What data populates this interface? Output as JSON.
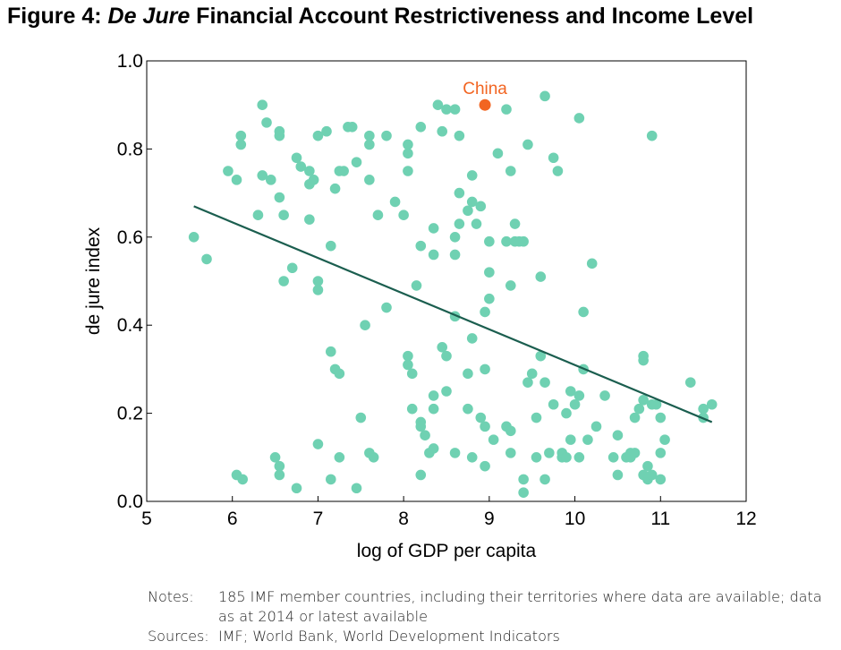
{
  "title": {
    "prefix": "Figure 4: ",
    "emphasis": "De Jure",
    "rest": " Financial Account Restrictiveness and Income Level"
  },
  "notes": {
    "notes_label": "Notes:",
    "notes_text": "185 IMF member countries, including their territories where data are available; data as at 2014 or latest available",
    "sources_label": "Sources:",
    "sources_text": "IMF; World Bank, World Development Indicators"
  },
  "chart_data": {
    "type": "scatter",
    "xlabel": "log of GDP per capita",
    "ylabel": "de jure index",
    "xlim": [
      5,
      12
    ],
    "ylim": [
      0,
      1
    ],
    "xticks": [
      "5",
      "6",
      "7",
      "8",
      "9",
      "10",
      "11",
      "12"
    ],
    "yticks": [
      "0.0",
      "0.2",
      "0.4",
      "0.6",
      "0.8",
      "1.0"
    ],
    "grid": false,
    "colors": {
      "points": "#6fd1b2",
      "trend": "#1b5e4f",
      "highlight": "#f26522"
    },
    "highlight": {
      "label": "China",
      "x": 8.95,
      "y": 0.9
    },
    "trendline": [
      [
        5.55,
        0.67
      ],
      [
        11.6,
        0.18
      ]
    ],
    "points": [
      [
        5.55,
        0.6
      ],
      [
        5.7,
        0.55
      ],
      [
        5.95,
        0.75
      ],
      [
        6.05,
        0.73
      ],
      [
        6.1,
        0.81
      ],
      [
        6.1,
        0.83
      ],
      [
        6.05,
        0.06
      ],
      [
        6.12,
        0.05
      ],
      [
        6.3,
        0.65
      ],
      [
        6.35,
        0.9
      ],
      [
        6.4,
        0.86
      ],
      [
        6.35,
        0.74
      ],
      [
        6.45,
        0.73
      ],
      [
        6.55,
        0.83
      ],
      [
        6.55,
        0.84
      ],
      [
        6.55,
        0.69
      ],
      [
        6.6,
        0.65
      ],
      [
        6.6,
        0.5
      ],
      [
        6.7,
        0.53
      ],
      [
        6.75,
        0.78
      ],
      [
        6.5,
        0.1
      ],
      [
        6.55,
        0.08
      ],
      [
        6.55,
        0.06
      ],
      [
        6.75,
        0.03
      ],
      [
        6.8,
        0.76
      ],
      [
        6.9,
        0.75
      ],
      [
        6.9,
        0.72
      ],
      [
        6.95,
        0.73
      ],
      [
        6.9,
        0.64
      ],
      [
        7.0,
        0.83
      ],
      [
        7.1,
        0.84
      ],
      [
        7.0,
        0.5
      ],
      [
        7.0,
        0.48
      ],
      [
        7.15,
        0.58
      ],
      [
        7.2,
        0.71
      ],
      [
        7.25,
        0.75
      ],
      [
        7.3,
        0.75
      ],
      [
        7.35,
        0.85
      ],
      [
        7.4,
        0.85
      ],
      [
        7.45,
        0.77
      ],
      [
        7.15,
        0.34
      ],
      [
        7.2,
        0.3
      ],
      [
        7.25,
        0.29
      ],
      [
        7.0,
        0.13
      ],
      [
        7.15,
        0.05
      ],
      [
        7.25,
        0.1
      ],
      [
        7.45,
        0.03
      ],
      [
        7.5,
        0.19
      ],
      [
        7.55,
        0.4
      ],
      [
        7.6,
        0.11
      ],
      [
        7.65,
        0.1
      ],
      [
        7.6,
        0.73
      ],
      [
        7.6,
        0.81
      ],
      [
        7.6,
        0.83
      ],
      [
        7.7,
        0.65
      ],
      [
        7.8,
        0.83
      ],
      [
        7.8,
        0.44
      ],
      [
        7.9,
        0.68
      ],
      [
        8.0,
        0.65
      ],
      [
        8.05,
        0.81
      ],
      [
        8.05,
        0.79
      ],
      [
        8.05,
        0.75
      ],
      [
        8.05,
        0.33
      ],
      [
        8.05,
        0.31
      ],
      [
        8.1,
        0.29
      ],
      [
        8.1,
        0.21
      ],
      [
        8.15,
        0.49
      ],
      [
        8.2,
        0.58
      ],
      [
        8.2,
        0.85
      ],
      [
        8.2,
        0.18
      ],
      [
        8.2,
        0.17
      ],
      [
        8.2,
        0.06
      ],
      [
        8.25,
        0.15
      ],
      [
        8.3,
        0.11
      ],
      [
        8.35,
        0.12
      ],
      [
        8.35,
        0.24
      ],
      [
        8.35,
        0.21
      ],
      [
        8.35,
        0.56
      ],
      [
        8.35,
        0.62
      ],
      [
        8.4,
        0.9
      ],
      [
        8.45,
        0.84
      ],
      [
        8.45,
        0.35
      ],
      [
        8.5,
        0.33
      ],
      [
        8.5,
        0.25
      ],
      [
        8.5,
        0.89
      ],
      [
        8.6,
        0.89
      ],
      [
        8.6,
        0.6
      ],
      [
        8.6,
        0.56
      ],
      [
        8.6,
        0.42
      ],
      [
        8.65,
        0.83
      ],
      [
        8.65,
        0.7
      ],
      [
        8.65,
        0.63
      ],
      [
        8.6,
        0.11
      ],
      [
        8.75,
        0.66
      ],
      [
        8.75,
        0.29
      ],
      [
        8.75,
        0.21
      ],
      [
        8.8,
        0.68
      ],
      [
        8.8,
        0.74
      ],
      [
        8.8,
        0.37
      ],
      [
        8.8,
        0.1
      ],
      [
        8.85,
        0.63
      ],
      [
        8.9,
        0.19
      ],
      [
        8.9,
        0.67
      ],
      [
        8.95,
        0.17
      ],
      [
        8.95,
        0.08
      ],
      [
        8.95,
        0.3
      ],
      [
        8.95,
        0.43
      ],
      [
        9.0,
        0.52
      ],
      [
        9.0,
        0.46
      ],
      [
        9.0,
        0.59
      ],
      [
        9.05,
        0.14
      ],
      [
        9.1,
        0.79
      ],
      [
        9.2,
        0.89
      ],
      [
        9.2,
        0.59
      ],
      [
        9.2,
        0.17
      ],
      [
        9.25,
        0.16
      ],
      [
        9.25,
        0.11
      ],
      [
        9.25,
        0.75
      ],
      [
        9.25,
        0.49
      ],
      [
        9.3,
        0.63
      ],
      [
        9.3,
        0.59
      ],
      [
        9.35,
        0.59
      ],
      [
        9.4,
        0.59
      ],
      [
        9.4,
        0.05
      ],
      [
        9.4,
        0.02
      ],
      [
        9.45,
        0.27
      ],
      [
        9.45,
        0.81
      ],
      [
        9.5,
        0.29
      ],
      [
        9.55,
        0.19
      ],
      [
        9.55,
        0.1
      ],
      [
        9.6,
        0.51
      ],
      [
        9.6,
        0.33
      ],
      [
        9.65,
        0.27
      ],
      [
        9.65,
        0.05
      ],
      [
        9.65,
        0.92
      ],
      [
        9.7,
        0.11
      ],
      [
        9.75,
        0.22
      ],
      [
        9.75,
        0.78
      ],
      [
        9.8,
        0.75
      ],
      [
        9.85,
        0.1
      ],
      [
        9.85,
        0.11
      ],
      [
        9.9,
        0.1
      ],
      [
        9.95,
        0.25
      ],
      [
        9.9,
        0.2
      ],
      [
        9.95,
        0.14
      ],
      [
        10.0,
        0.22
      ],
      [
        10.05,
        0.24
      ],
      [
        10.05,
        0.87
      ],
      [
        10.05,
        0.1
      ],
      [
        10.1,
        0.3
      ],
      [
        10.1,
        0.43
      ],
      [
        10.15,
        0.14
      ],
      [
        10.2,
        0.54
      ],
      [
        10.25,
        0.17
      ],
      [
        10.35,
        0.24
      ],
      [
        10.45,
        0.1
      ],
      [
        10.5,
        0.06
      ],
      [
        10.5,
        0.15
      ],
      [
        10.6,
        0.1
      ],
      [
        10.65,
        0.11
      ],
      [
        10.65,
        0.1
      ],
      [
        10.7,
        0.11
      ],
      [
        10.7,
        0.19
      ],
      [
        10.75,
        0.21
      ],
      [
        10.8,
        0.06
      ],
      [
        10.8,
        0.32
      ],
      [
        10.8,
        0.33
      ],
      [
        10.8,
        0.23
      ],
      [
        10.85,
        0.08
      ],
      [
        10.85,
        0.05
      ],
      [
        10.9,
        0.83
      ],
      [
        10.9,
        0.06
      ],
      [
        10.9,
        0.22
      ],
      [
        10.95,
        0.22
      ],
      [
        11.0,
        0.19
      ],
      [
        11.0,
        0.11
      ],
      [
        11.0,
        0.05
      ],
      [
        11.05,
        0.14
      ],
      [
        11.35,
        0.27
      ],
      [
        11.5,
        0.21
      ],
      [
        11.5,
        0.19
      ],
      [
        11.6,
        0.22
      ]
    ]
  }
}
